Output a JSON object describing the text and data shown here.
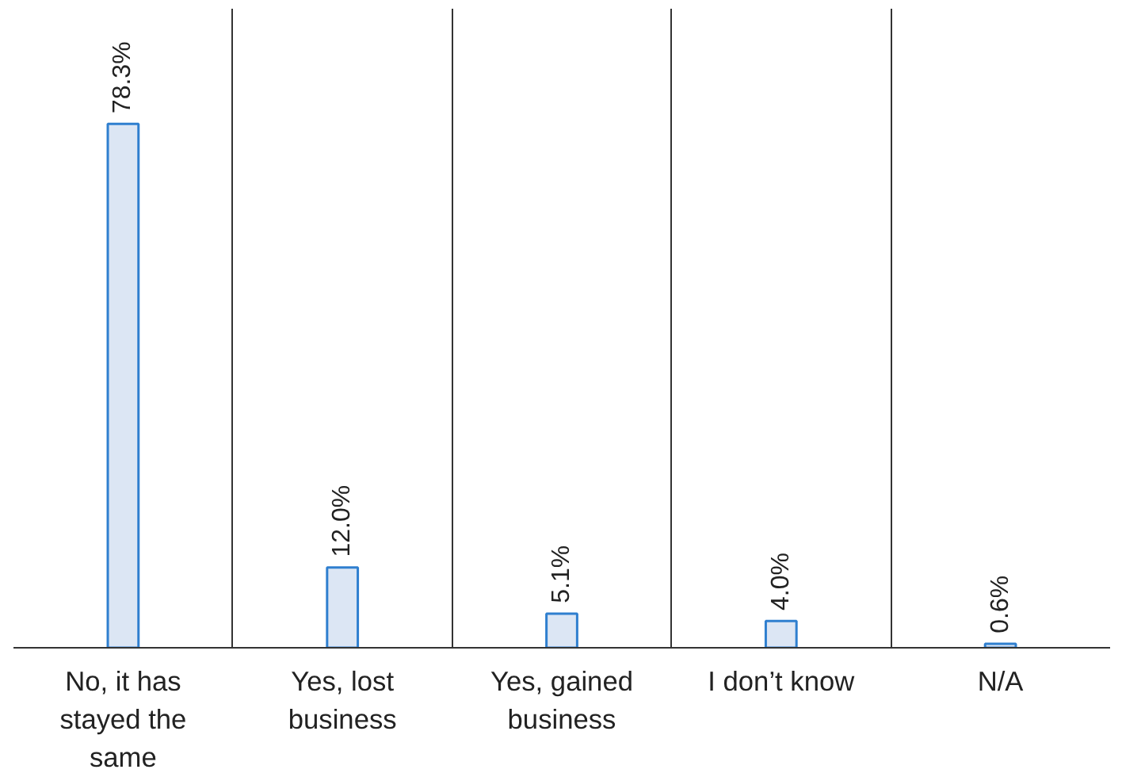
{
  "chart_data": {
    "type": "bar",
    "categories": [
      "No, it has stayed the same",
      "Yes, lost business",
      "Yes, gained business",
      "I don’t know",
      "N/A"
    ],
    "values": [
      78.3,
      12.0,
      5.1,
      4.0,
      0.6
    ],
    "value_labels": [
      "78.3%",
      "12.0%",
      "5.1%",
      "4.0%",
      "0.6%"
    ],
    "color": "#dce6f4",
    "grid": "x"
  }
}
